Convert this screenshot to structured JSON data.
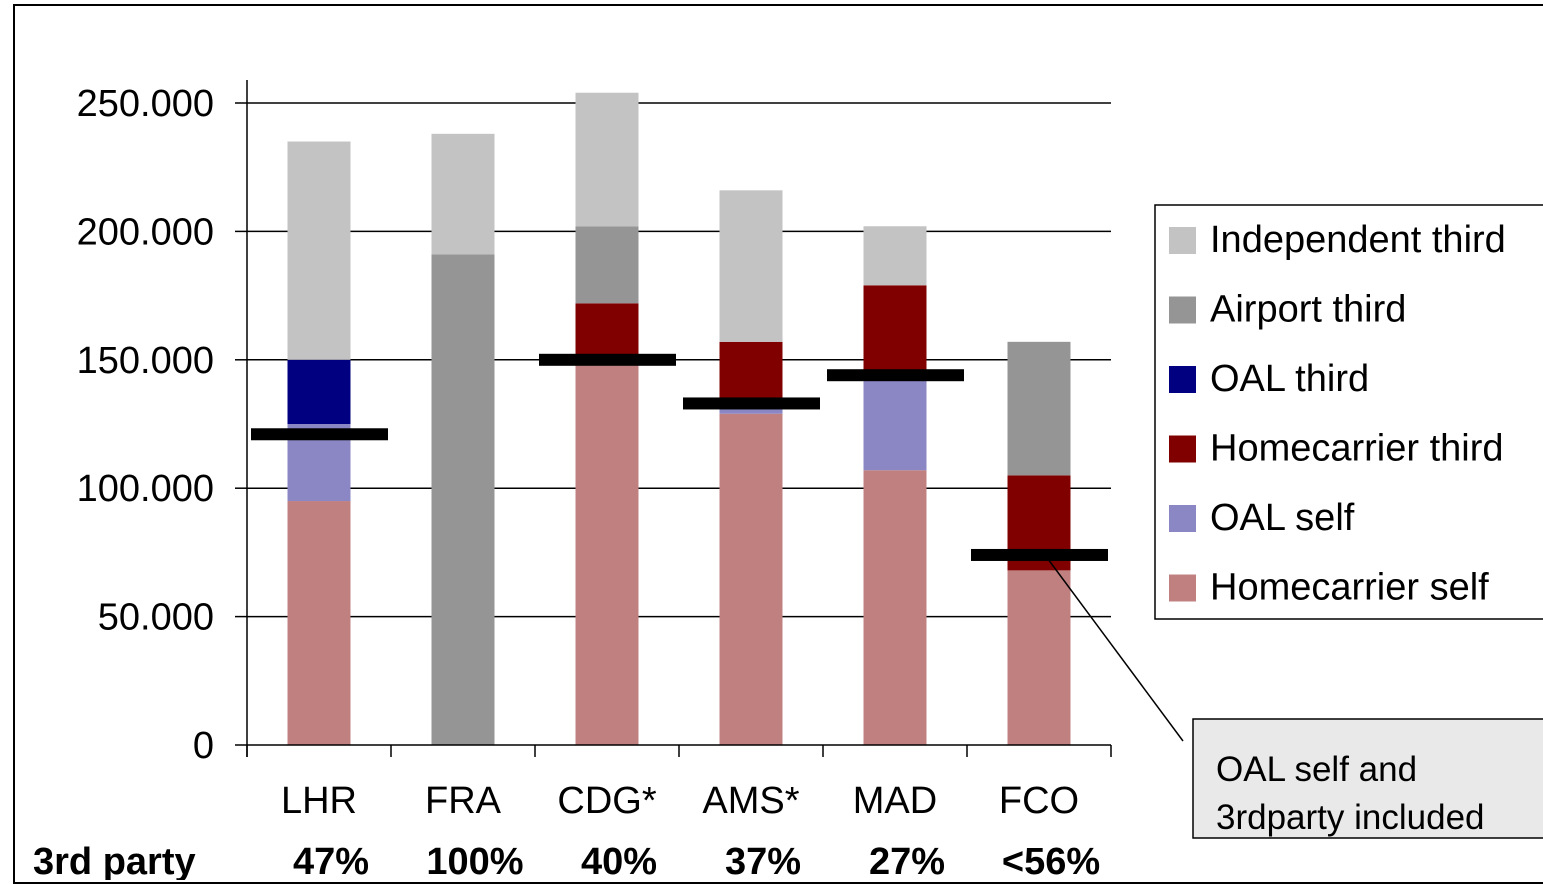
{
  "chart_data": {
    "type": "bar",
    "stacked": true,
    "categories": [
      "LHR",
      "FRA",
      "CDG*",
      "AMS*",
      "MAD",
      "FCO"
    ],
    "ylim": [
      0,
      250000
    ],
    "yticks": [
      0,
      50000,
      100000,
      150000,
      200000,
      250000
    ],
    "ytick_labels": [
      "0",
      "50.000",
      "100.000",
      "150.000",
      "200.000",
      "250.000"
    ],
    "grid": true,
    "legend_position": "right",
    "series": [
      {
        "name": "Homecarrier self",
        "color": "#c08080",
        "values": [
          95000,
          0,
          148000,
          129000,
          107000,
          68000
        ]
      },
      {
        "name": "OAL self",
        "color": "#8b87c4",
        "values": [
          30000,
          0,
          0,
          2000,
          36000,
          0
        ]
      },
      {
        "name": "Homecarrier third",
        "color": "#800000",
        "values": [
          0,
          0,
          24000,
          26000,
          36000,
          37000
        ]
      },
      {
        "name": "OAL third",
        "color": "#000080",
        "values": [
          25000,
          0,
          0,
          0,
          0,
          0
        ]
      },
      {
        "name": "Airport third",
        "color": "#959595",
        "values": [
          0,
          191000,
          30000,
          0,
          0,
          52000
        ]
      },
      {
        "name": "Independent third",
        "color": "#c3c3c3",
        "values": [
          85000,
          47000,
          52000,
          59000,
          23000,
          0
        ]
      }
    ],
    "markers": [
      121000,
      null,
      150000,
      133000,
      144000,
      74000
    ],
    "row_label": "3rd party",
    "row_values": [
      "47%",
      "100%",
      "40%",
      "37%",
      "27%",
      "<56%"
    ],
    "annotation": [
      "OAL self and",
      "3rdparty included"
    ]
  }
}
